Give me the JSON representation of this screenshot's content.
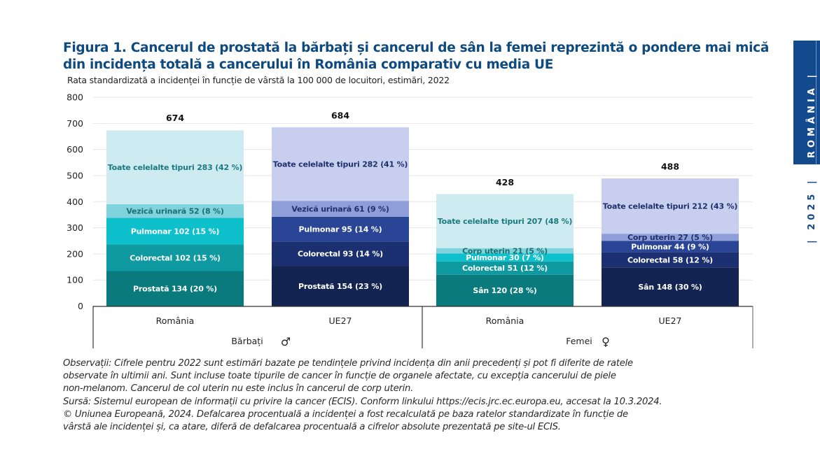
{
  "chart_data": {
    "type": "bar",
    "stacked": true,
    "title": "Figura 1. Cancerul de prostată la bărbați și cancerul de sân la femei reprezintă o pondere mai mică din incidența totală a cancerului în România comparativ cu media UE",
    "subtitle": "Rata standardizată a incidenței în funcție de vârstă la 100 000 de locuitori, estimări, 2022",
    "xlabel": "",
    "ylabel": "",
    "ylim": [
      0,
      800
    ],
    "yticks": [
      0,
      100,
      200,
      300,
      400,
      500,
      600,
      700,
      800
    ],
    "grid": true,
    "groups": [
      {
        "name": "Bărbați",
        "symbol": "♂",
        "bars": [
          {
            "category": "România",
            "total": 674,
            "segments": [
              {
                "name": "Prostată",
                "value": 134,
                "pct": "20 %",
                "label": "Prostată 134 (20 %)",
                "color": "#0b7a7c",
                "text_color": "#ffffff"
              },
              {
                "name": "Colorectal",
                "value": 102,
                "pct": "15 %",
                "label": "Colorectal 102 (15 %)",
                "color": "#0f9aa2",
                "text_color": "#ffffff"
              },
              {
                "name": "Pulmonar",
                "value": 102,
                "pct": "15 %",
                "label": "Pulmonar 102 (15 %)",
                "color": "#0ec0cc",
                "text_color": "#ffffff"
              },
              {
                "name": "Vezică urinară",
                "value": 52,
                "pct": "8 %",
                "label": "Vezică urinară 52 (8 %)",
                "color": "#7fd3dc",
                "text_color": "#1b6f73"
              },
              {
                "name": "Toate celelalte tipuri",
                "value": 283,
                "pct": "42 %",
                "label": "Toate celelalte tipuri 283 (42 %)",
                "color": "#cdebf0",
                "text_color": "#1b7a7e"
              }
            ]
          },
          {
            "category": "UE27",
            "total": 684,
            "segments": [
              {
                "name": "Prostată",
                "value": 154,
                "pct": "23 %",
                "label": "Prostată 154 (23 %)",
                "color": "#132453",
                "text_color": "#ffffff"
              },
              {
                "name": "Colorectal",
                "value": 93,
                "pct": "14 %",
                "label": "Colorectal 93 (14 %)",
                "color": "#1c2f70",
                "text_color": "#ffffff"
              },
              {
                "name": "Pulmonar",
                "value": 95,
                "pct": "14 %",
                "label": "Pulmonar 95 (14 %)",
                "color": "#2a4496",
                "text_color": "#ffffff"
              },
              {
                "name": "Vezică urinară",
                "value": 61,
                "pct": "9 %",
                "label": "Vezică urinară 61 (9 %)",
                "color": "#8e9ed8",
                "text_color": "#1f2f6e"
              },
              {
                "name": "Toate celelalte tipuri",
                "value": 282,
                "pct": "41 %",
                "label": "Toate celelalte tipuri 282 (41 %)",
                "color": "#c8cfee",
                "text_color": "#1f2f6e"
              }
            ]
          }
        ]
      },
      {
        "name": "Femei",
        "symbol": "♀",
        "bars": [
          {
            "category": "România",
            "total": 428,
            "segments": [
              {
                "name": "Sân",
                "value": 120,
                "pct": "28 %",
                "label": "Sân 120 (28 %)",
                "color": "#0b7a7c",
                "text_color": "#ffffff"
              },
              {
                "name": "Colorectal",
                "value": 51,
                "pct": "12 %",
                "label": "Colorectal 51 (12 %)",
                "color": "#0f9aa2",
                "text_color": "#ffffff"
              },
              {
                "name": "Pulmonar",
                "value": 30,
                "pct": "7 %",
                "label": "Pulmonar 30 (7 %)",
                "color": "#0ec0cc",
                "text_color": "#ffffff"
              },
              {
                "name": "Corp uterin",
                "value": 21,
                "pct": "5 %",
                "label": "Corp uterin 21 (5 %)",
                "color": "#7fd3dc",
                "text_color": "#1b6f73"
              },
              {
                "name": "Toate celelalte tipuri",
                "value": 207,
                "pct": "48 %",
                "label": "Toate celelalte tipuri 207 (48 %)",
                "color": "#cdebf0",
                "text_color": "#1b7a7e"
              }
            ]
          },
          {
            "category": "UE27",
            "total": 488,
            "segments": [
              {
                "name": "Sân",
                "value": 148,
                "pct": "30 %",
                "label": "Sân 148 (30 %)",
                "color": "#132453",
                "text_color": "#ffffff"
              },
              {
                "name": "Colorectal",
                "value": 58,
                "pct": "12 %",
                "label": "Colorectal 58 (12 %)",
                "color": "#1c2f70",
                "text_color": "#ffffff"
              },
              {
                "name": "Pulmonar",
                "value": 44,
                "pct": "9 %",
                "label": "Pulmonar 44 (9 %)",
                "color": "#2a4496",
                "text_color": "#ffffff"
              },
              {
                "name": "Corp uterin",
                "value": 27,
                "pct": "5 %",
                "label": "Corp uterin 27 (5 %)",
                "color": "#8e9ed8",
                "text_color": "#1f2f6e"
              },
              {
                "name": "Toate celelalte tipuri",
                "value": 212,
                "pct": "43 %",
                "label": "Toate celelalte tipuri 212 (43 %)",
                "color": "#c8cfee",
                "text_color": "#1f2f6e"
              }
            ]
          }
        ]
      }
    ]
  },
  "header": {
    "title": "Figura 1. Cancerul de prostată la bărbați și cancerul de sân la femei reprezintă o pondere mai mică din incidența totală a cancerului în România comparativ cu media UE",
    "subtitle": "Rata standardizată a incidenței în funcție de vârstă la 100 000 de locuitori, estimări, 2022"
  },
  "notes": {
    "lines": [
      "Observații: Cifrele pentru 2022 sunt estimări bazate pe tendințele privind incidența din anii precedenți și pot fi diferite de ratele",
      "observate în ultimii ani. Sunt incluse toate tipurile de cancer în funcție de organele afectate, cu excepția cancerului de piele",
      "non-melanom. Cancerul de col uterin nu este inclus în cancerul de corp uterin.",
      "Sursă: Sistemul european de informații cu privire la cancer (ECIS). Conform linkului https://ecis.jrc.ec.europa.eu, accesat la 10.3.2024.",
      "© Uniunea Europeană, 2024. Defalcarea procentuală a incidenței a fost recalculată pe baza ratelor standardizate în funcție de",
      "vârstă ale incidenței și, ca atare, diferă de defalcarea procentuală a cifrelor absolute prezentată pe site-ul ECIS."
    ]
  },
  "sidebar": {
    "country": "ROMÂNIA  |",
    "year": "|  2025  |"
  },
  "colors": {
    "title": "#0e4a7e",
    "side_tab": "#134a8e"
  }
}
